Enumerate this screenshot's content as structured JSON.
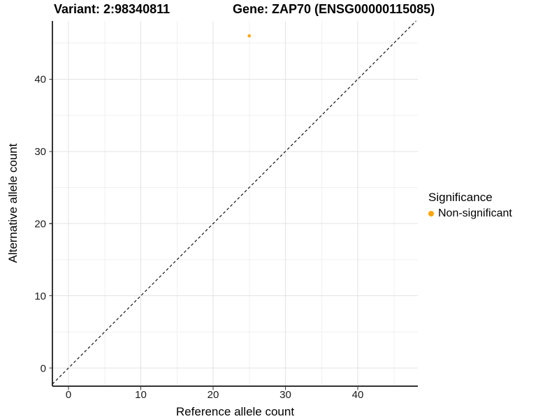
{
  "chart_data": {
    "type": "scatter",
    "title_left": "Variant: 2:98340811",
    "title_right": "Gene: ZAP70 (ENSG00000115085)",
    "xlabel": "Reference allele count",
    "ylabel": "Alternative allele count",
    "x_ticks": [
      0,
      10,
      20,
      30,
      40
    ],
    "y_ticks": [
      0,
      10,
      20,
      30,
      40
    ],
    "x_minor_ticks": [
      5,
      15,
      25,
      35,
      45
    ],
    "y_minor_ticks": [
      5,
      15,
      25,
      35,
      45
    ],
    "xlim": [
      -2.2,
      48.3
    ],
    "ylim": [
      -2.5,
      48.1
    ],
    "grid": true,
    "points": [
      {
        "x": 25,
        "y": 46,
        "series": "Non-significant",
        "color": "#FFA500"
      }
    ],
    "reference_line": {
      "type": "identity",
      "slope": 1,
      "intercept": 0,
      "style": "dashed",
      "color": "#141414"
    },
    "legend": {
      "title": "Significance",
      "position": "right",
      "entries": [
        {
          "label": "Non-significant",
          "color": "#FFA500"
        }
      ]
    },
    "colors": {
      "axis_line": "#333333",
      "tick_text": "#1a1a1a",
      "grid_major": "#e3e3e3",
      "grid_minor": "#f0f0f0"
    }
  }
}
